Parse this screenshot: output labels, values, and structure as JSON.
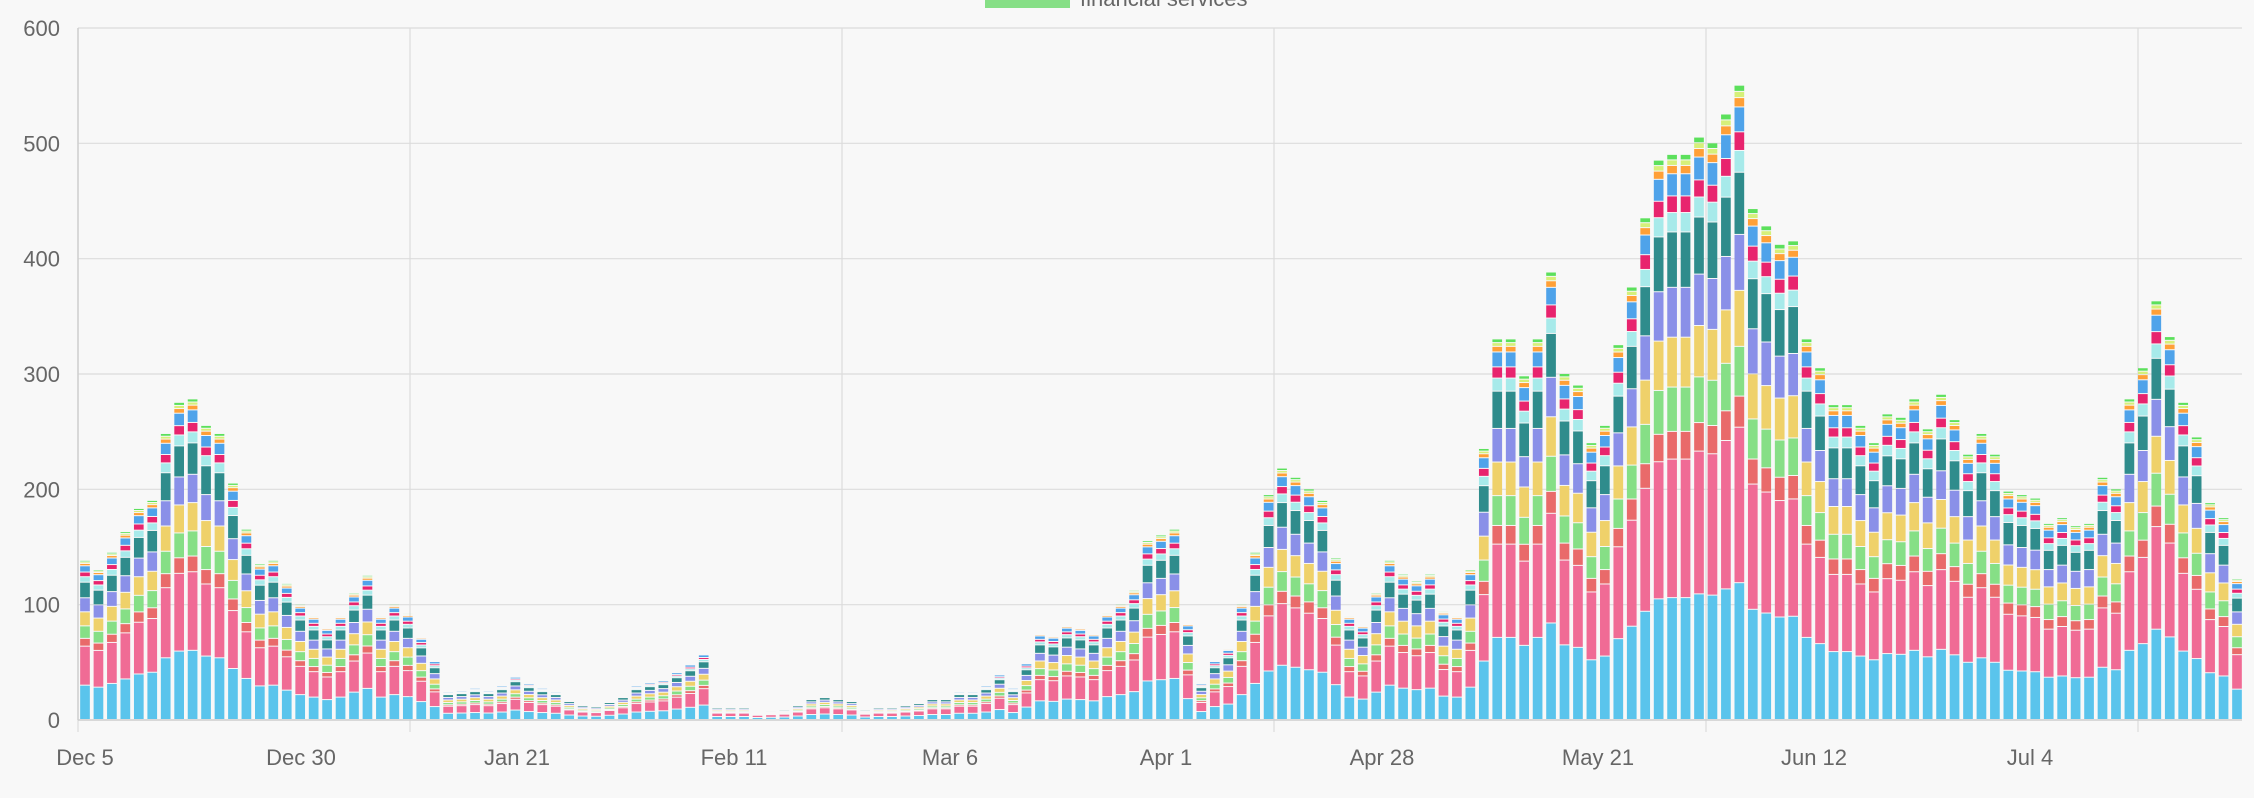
{
  "chart_data": {
    "type": "bar",
    "stacked": true,
    "legend": {
      "position": "top",
      "visible_entries": [
        "financial services"
      ]
    },
    "ylim": [
      0,
      600
    ],
    "y_ticks": [
      "0",
      "100",
      "200",
      "300",
      "400",
      "500",
      "600"
    ],
    "x_tick_labels": [
      "Dec 5",
      "Dec 30",
      "Jan 21",
      "Feb 11",
      "Mar 6",
      "Apr 1",
      "Apr 28",
      "May 21",
      "Jun 12",
      "Jul 4"
    ],
    "grid": true,
    "layer_colors": [
      "#5ac4ec",
      "#f06b95",
      "#e96a6a",
      "#86df86",
      "#efd16a",
      "#8a90e8",
      "#2f8c8c",
      "#a7eaea",
      "#e8246e",
      "#4fa3ea",
      "#ffa037",
      "#d6f07a",
      "#5ce05c"
    ],
    "layer_fractions": [
      0.22,
      0.25,
      0.05,
      0.08,
      0.09,
      0.09,
      0.1,
      0.035,
      0.03,
      0.04,
      0.015,
      0.01,
      0.01
    ],
    "totals": [
      138,
      130,
      145,
      163,
      183,
      190,
      248,
      275,
      278,
      255,
      248,
      205,
      165,
      135,
      138,
      118,
      100,
      90,
      80,
      90,
      110,
      125,
      90,
      100,
      92,
      72,
      52,
      25,
      26,
      28,
      26,
      30,
      38,
      32,
      28,
      25,
      18,
      14,
      13,
      17,
      22,
      30,
      33,
      35,
      42,
      49,
      58,
      12,
      12,
      12,
      8,
      9,
      10,
      14,
      20,
      22,
      20,
      18,
      10,
      12,
      12,
      14,
      16,
      20,
      20,
      25,
      25,
      30,
      40,
      28,
      50,
      75,
      73,
      82,
      80,
      75,
      92,
      100,
      112,
      155,
      160,
      165,
      84,
      32,
      52,
      62,
      100,
      145,
      195,
      218,
      210,
      200,
      190,
      140,
      90,
      82,
      110,
      138,
      126,
      120,
      126,
      94,
      90,
      130,
      235,
      330,
      330,
      298,
      330,
      388,
      300,
      290,
      240,
      255,
      325,
      375,
      435,
      485,
      490,
      490,
      505,
      500,
      525,
      550,
      443,
      428,
      412,
      415,
      330,
      305,
      273,
      273,
      255,
      240,
      265,
      262,
      278,
      252,
      282,
      260,
      230,
      248,
      230,
      198,
      195,
      192,
      170,
      175,
      168,
      170,
      210,
      200,
      278,
      305,
      363,
      332,
      275,
      245,
      188,
      175,
      122
    ]
  }
}
